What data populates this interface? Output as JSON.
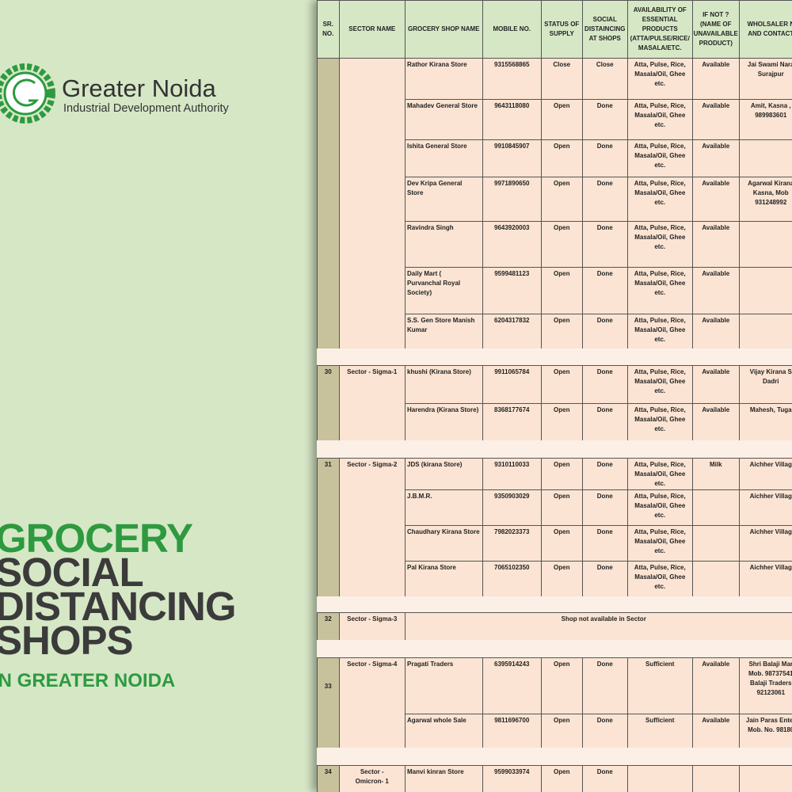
{
  "logo": {
    "title": "Greater Noida",
    "subtitle": "Industrial Development Authority"
  },
  "headline": {
    "lines": [
      "GROCERY",
      "SOCIAL",
      "DISTANCING",
      "SHOPS"
    ],
    "tagline": "IN GREATER NOIDA"
  },
  "table": {
    "header": [
      "SR.\nNO.",
      "SECTOR NAME",
      "GROCERY SHOP NAME",
      "MOBILE NO.",
      "STATUS OF\nSUPPLY",
      "SOCIAL\nDISTAINCING\nAT SHOPS",
      "AVAILABILITY OF\nESSENTIAL\nPRODUCTS\n(ATTA/PULSE/RICE/\nMASALA/ETC.",
      "IF NOT ?\n(NAME OF\nUNAVAILABLE\nPRODUCT)",
      "WHOLSALER N\nAND CONTACT"
    ],
    "groups": [
      {
        "sr": "",
        "sector": "",
        "rows": [
          [
            "Rathor Kirana Store",
            "9315568865",
            "Close",
            "Close",
            "Atta, Pulse, Rice,\nMasala/Oil, Ghee\netc.",
            "Available",
            "Jai Swami Nara\nSurajpur"
          ],
          [
            "Mahadev General Store",
            "9643118080",
            "Open",
            "Done",
            "Atta, Pulse, Rice,\nMasala/Oil, Ghee\netc.",
            "Available",
            "Amit, Kasna , \n989983601"
          ],
          [
            "Ishita General Store",
            "9910845907",
            "Open",
            "Done",
            "Atta, Pulse, Rice,\nMasala/Oil, Ghee\netc.",
            "Available",
            ""
          ],
          [
            "Dev Kripa General\nStore",
            "9971890650",
            "Open",
            "Done",
            "Atta, Pulse, Rice,\nMasala/Oil, Ghee\netc.",
            "Available",
            "Agarwal Kirana\nKasna, Mob\n931248992"
          ],
          [
            "Ravindra Singh",
            "9643920003",
            "Open",
            "Done",
            "Atta, Pulse, Rice,\nMasala/Oil, Ghee\netc.",
            "Available",
            ""
          ],
          [
            "Daily Mart (\nPurvanchal Royal\nSociety)",
            "9599481123",
            "Open",
            "Done",
            "Atta, Pulse, Rice,\nMasala/Oil, Ghee\netc.",
            "Available",
            ""
          ],
          [
            "S.S. Gen Store Manish\nKumar",
            "6204317832",
            "Open",
            "Done",
            "Atta, Pulse, Rice,\nMasala/Oil, Ghee\netc.",
            "Available",
            ""
          ]
        ]
      },
      {
        "sr": "30",
        "sector": "Sector - Sigma-1",
        "rows": [
          [
            "khushi  (Kirana Store)",
            "9911065784",
            "Open",
            "Done",
            "Atta, Pulse, Rice,\nMasala/Oil, Ghee\netc.",
            "Available",
            "Vijay Kirana S\nDadri"
          ],
          [
            "Harendra (Kirana Store)",
            "8368177674",
            "Open",
            "Done",
            "Atta, Pulse, Rice,\nMasala/Oil, Ghee\netc.",
            "Available",
            "Mahesh, Tuga"
          ]
        ]
      },
      {
        "sr": "31",
        "sector": "Sector - Sigma-2",
        "rows": [
          [
            "JDS (kirana Store)",
            "9310110033",
            "Open",
            "Done",
            "Atta, Pulse, Rice,\nMasala/Oil, Ghee\netc.",
            "Milk",
            "Aichher Villag"
          ],
          [
            "J.B.M.R.",
            "9350903029",
            "Open",
            "Done",
            "Atta, Pulse, Rice,\nMasala/Oil, Ghee\netc.",
            "",
            "Aichher Villag"
          ],
          [
            "Chaudhary Kirana Store",
            "7982023373",
            "Open",
            "Done",
            "Atta, Pulse, Rice,\nMasala/Oil, Ghee\netc.",
            "",
            "Aichher Villag"
          ],
          [
            "Pal Kirana Store",
            "7065102350",
            "Open",
            "Done",
            "Atta, Pulse, Rice,\nMasala/Oil, Ghee\netc.",
            "",
            "Aichher Villag"
          ]
        ]
      },
      {
        "sr": "32",
        "sector": "Sector - Sigma-3",
        "note": "Shop not available in Sector",
        "rows": []
      },
      {
        "sr": "33",
        "sector": "Sector - Sigma-4",
        "rows": [
          [
            "Pragati Traders",
            "6395914243",
            "Open",
            "Done",
            "Sufficient",
            "Available",
            "Shri Balaji Mar\nMob. 98737541\nBalaji Traders\n92123061"
          ],
          [
            "Agarwal whole Sale",
            "9811696700",
            "Open",
            "Done",
            "Sufficient",
            "Available",
            "Jain Paras Enter\nMob. No. 98180"
          ]
        ]
      },
      {
        "sr": "34",
        "sector": "Sector -\nOmicron- 1",
        "rows": [
          [
            "Manvi kinran Store",
            "9599033974",
            "Open",
            "Done",
            "",
            "",
            ""
          ]
        ]
      }
    ]
  }
}
